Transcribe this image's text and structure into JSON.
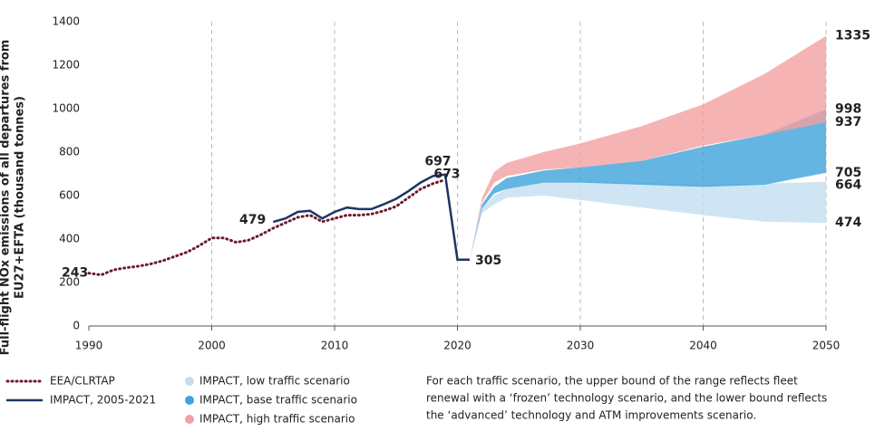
{
  "chart_data": {
    "type": "line",
    "ylabel": [
      "Full-flight NOx emissions of all departures from",
      "EU27+EFTA (thousand tonnes)"
    ],
    "xlim": [
      1990,
      2050
    ],
    "xticks": [
      1990,
      2000,
      2010,
      2020,
      2030,
      2040,
      2050
    ],
    "ylim": [
      0,
      1400
    ],
    "yticks": [
      0,
      200,
      400,
      600,
      800,
      1000,
      1200,
      1400
    ],
    "grid": true,
    "series": [
      {
        "name": "EEA/CLRTAP",
        "color": "#6d1a2a",
        "style": "dotted",
        "x": [
          1990,
          1991,
          1992,
          1993,
          1994,
          1995,
          1996,
          1997,
          1998,
          1999,
          2000,
          2001,
          2002,
          2003,
          2004,
          2005,
          2006,
          2007,
          2008,
          2009,
          2010,
          2011,
          2012,
          2013,
          2014,
          2015,
          2016,
          2017,
          2018,
          2019
        ],
        "values": [
          243,
          235,
          258,
          268,
          275,
          285,
          300,
          320,
          340,
          370,
          405,
          405,
          385,
          395,
          420,
          450,
          475,
          500,
          510,
          480,
          495,
          510,
          510,
          515,
          530,
          550,
          590,
          630,
          655,
          673
        ]
      },
      {
        "name": "IMPACT, 2005-2021",
        "color": "#1f3466",
        "style": "solid",
        "x": [
          2005,
          2006,
          2007,
          2008,
          2009,
          2010,
          2011,
          2012,
          2013,
          2014,
          2015,
          2016,
          2017,
          2018,
          2019,
          2020,
          2021
        ],
        "values": [
          479,
          495,
          525,
          530,
          495,
          525,
          545,
          538,
          538,
          560,
          585,
          620,
          660,
          690,
          697,
          305,
          305
        ]
      },
      {
        "name": "IMPACT, low traffic scenario",
        "color": "#c3def0",
        "style": "band",
        "x": [
          2021,
          2022,
          2023,
          2024,
          2027,
          2030,
          2035,
          2040,
          2045,
          2050
        ],
        "upper": [
          305,
          540,
          600,
          630,
          665,
          665,
          660,
          650,
          655,
          664
        ],
        "lower": [
          305,
          520,
          560,
          590,
          600,
          580,
          545,
          510,
          480,
          474
        ]
      },
      {
        "name": "IMPACT, base traffic scenario",
        "color": "#3fa2dc",
        "style": "band",
        "x": [
          2021,
          2022,
          2023,
          2024,
          2027,
          2030,
          2035,
          2040,
          2045,
          2050
        ],
        "upper": [
          305,
          560,
          640,
          680,
          715,
          730,
          760,
          825,
          880,
          998
        ],
        "lower": [
          305,
          540,
          610,
          630,
          660,
          660,
          650,
          640,
          650,
          705
        ]
      },
      {
        "name": "IMPACT, high traffic scenario",
        "color": "#f4a0a0",
        "style": "band",
        "x": [
          2021,
          2022,
          2023,
          2024,
          2027,
          2030,
          2035,
          2040,
          2045,
          2050
        ],
        "upper": [
          305,
          590,
          710,
          750,
          800,
          840,
          920,
          1020,
          1160,
          1335
        ],
        "lower": [
          305,
          570,
          660,
          690,
          720,
          730,
          760,
          830,
          880,
          937
        ]
      }
    ],
    "note": [
      "For each traffic scenario, the upper bound of the range reflects fleet",
      "renewal with a ‘frozen’ technology scenario, and the lower bound reflects",
      "the ‘advanced’ technology and ATM improvements scenario."
    ]
  }
}
